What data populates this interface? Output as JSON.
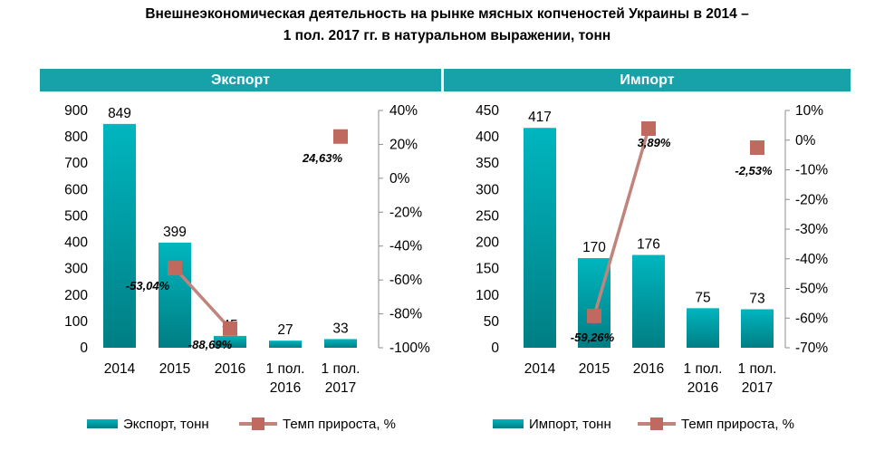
{
  "title": {
    "line1": "Внешнеэкономическая деятельность на рынке мясных копченостей Украины в 2014 –",
    "line2": "1 пол. 2017 гг. в натуральном выражении, тонн"
  },
  "colors": {
    "banner": "#17a2a9",
    "bar_top": "#00b6bf",
    "bar_bottom": "#007e84",
    "line": "#c0847c",
    "marker": "#c0695f"
  },
  "chart_data": [
    {
      "type": "bar",
      "banner": "Экспорт",
      "categories": [
        [
          "2014"
        ],
        [
          "2015"
        ],
        [
          "2016"
        ],
        [
          "1 пол.",
          "2016"
        ],
        [
          "1 пол.",
          "2017"
        ]
      ],
      "values": [
        849,
        399,
        45,
        27,
        33
      ],
      "ylim": [
        0,
        900
      ],
      "yticks": [
        "0",
        "100",
        "200",
        "300",
        "400",
        "500",
        "600",
        "700",
        "800",
        "900"
      ],
      "bar_series_name": "Экспорт, тонн",
      "line": {
        "name": "Темп прироста, %",
        "values": [
          null,
          -53.04,
          -88.69,
          null,
          24.63
        ],
        "labels": [
          "",
          "-53,04%",
          "-88,69%",
          "",
          "24,63%"
        ]
      },
      "y2lim": [
        -100,
        40
      ],
      "y2ticks": [
        "-100%",
        "-80%",
        "-60%",
        "-40%",
        "-20%",
        "0%",
        "20%",
        "40%"
      ],
      "legend_position": "bottom"
    },
    {
      "type": "bar",
      "banner": "Импорт",
      "categories": [
        [
          "2014"
        ],
        [
          "2015"
        ],
        [
          "2016"
        ],
        [
          "1 пол.",
          "2016"
        ],
        [
          "1 пол.",
          "2017"
        ]
      ],
      "values": [
        417,
        170,
        176,
        75,
        73
      ],
      "ylim": [
        0,
        450
      ],
      "yticks": [
        "0",
        "50",
        "100",
        "150",
        "200",
        "250",
        "300",
        "350",
        "400",
        "450"
      ],
      "bar_series_name": "Импорт, тонн",
      "line": {
        "name": "Темп прироста, %",
        "values": [
          null,
          -59.26,
          3.89,
          null,
          -2.53
        ],
        "labels": [
          "",
          "-59,26%",
          "3,89%",
          "",
          "-2,53%"
        ]
      },
      "y2lim": [
        -70,
        10
      ],
      "y2ticks": [
        "-70%",
        "-60%",
        "-50%",
        "-40%",
        "-30%",
        "-20%",
        "-10%",
        "0%",
        "10%"
      ],
      "legend_position": "bottom"
    }
  ]
}
